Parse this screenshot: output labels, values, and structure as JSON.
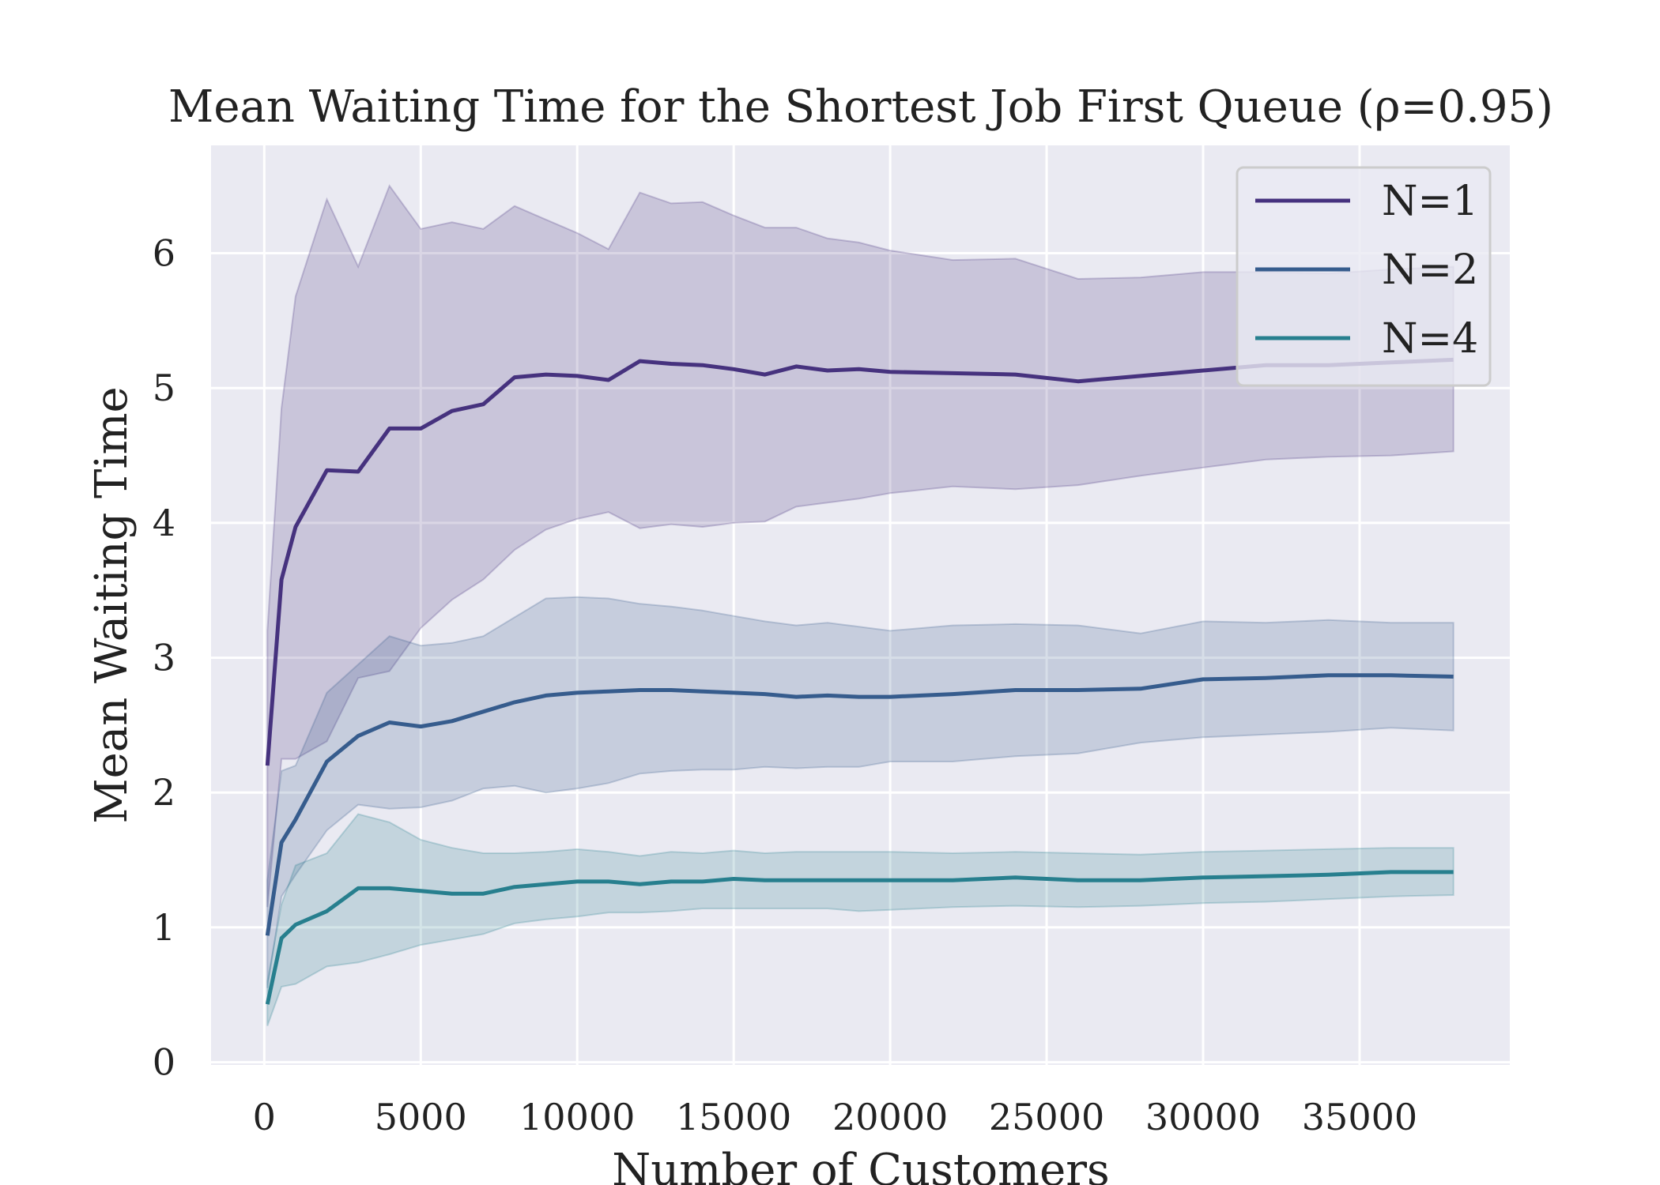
{
  "chart_data": {
    "type": "line",
    "title": "Mean Waiting Time for the Shortest Job First Queue (ρ=0.95)",
    "xlabel": "Number of Customers",
    "ylabel": "Mean Waiting Time",
    "xlim": [
      -1700,
      39800
    ],
    "ylim": [
      -0.02,
      6.8
    ],
    "xticks": [
      0,
      5000,
      10000,
      15000,
      20000,
      25000,
      30000,
      35000
    ],
    "xtick_labels": [
      "0",
      "5000",
      "10000",
      "15000",
      "20000",
      "25000",
      "30000",
      "35000"
    ],
    "yticks": [
      0,
      1,
      2,
      3,
      4,
      5,
      6
    ],
    "ytick_labels": [
      "0",
      "1",
      "2",
      "3",
      "4",
      "5",
      "6"
    ],
    "grid": true,
    "legend_position": "top-right",
    "background": "#eaeaf2",
    "series": [
      {
        "name": "N=1",
        "color": "#46327e",
        "band_color": "#46327e",
        "x": [
          100,
          550,
          1000,
          2000,
          3000,
          4000,
          5000,
          6000,
          7000,
          8000,
          9000,
          10000,
          11000,
          12000,
          13000,
          14000,
          15000,
          16000,
          17000,
          18000,
          19000,
          20000,
          22000,
          24000,
          26000,
          28000,
          30000,
          32000,
          34000,
          36000,
          38000
        ],
        "y": [
          2.2,
          3.58,
          3.97,
          4.39,
          4.38,
          4.7,
          4.7,
          4.83,
          4.88,
          5.08,
          5.1,
          5.09,
          5.06,
          5.2,
          5.18,
          5.17,
          5.14,
          5.1,
          5.16,
          5.13,
          5.14,
          5.12,
          5.11,
          5.1,
          5.05,
          5.09,
          5.13,
          5.17,
          5.17,
          5.19,
          5.21
        ],
        "lower": [
          1.15,
          2.25,
          2.25,
          2.38,
          2.85,
          2.9,
          3.22,
          3.43,
          3.58,
          3.8,
          3.95,
          4.03,
          4.08,
          3.96,
          3.99,
          3.97,
          4.0,
          4.01,
          4.12,
          4.15,
          4.18,
          4.22,
          4.27,
          4.25,
          4.28,
          4.35,
          4.41,
          4.47,
          4.49,
          4.5,
          4.53
        ],
        "upper": [
          3.2,
          4.85,
          5.68,
          6.4,
          5.9,
          6.5,
          6.18,
          6.23,
          6.18,
          6.35,
          6.25,
          6.15,
          6.03,
          6.45,
          6.37,
          6.38,
          6.28,
          6.19,
          6.19,
          6.11,
          6.08,
          6.02,
          5.95,
          5.96,
          5.81,
          5.82,
          5.86,
          5.86,
          5.85,
          5.88,
          5.9
        ]
      },
      {
        "name": "N=2",
        "color": "#365c8d",
        "band_color": "#365c8d",
        "x": [
          100,
          550,
          1000,
          2000,
          3000,
          4000,
          5000,
          6000,
          7000,
          8000,
          9000,
          10000,
          11000,
          12000,
          13000,
          14000,
          15000,
          16000,
          17000,
          18000,
          19000,
          20000,
          22000,
          24000,
          26000,
          28000,
          30000,
          32000,
          34000,
          36000,
          38000
        ],
        "y": [
          0.94,
          1.63,
          1.8,
          2.23,
          2.42,
          2.52,
          2.49,
          2.53,
          2.6,
          2.67,
          2.72,
          2.74,
          2.75,
          2.76,
          2.76,
          2.75,
          2.74,
          2.73,
          2.71,
          2.72,
          2.71,
          2.71,
          2.73,
          2.76,
          2.76,
          2.77,
          2.84,
          2.85,
          2.87,
          2.87,
          2.86
        ],
        "lower": [
          0.55,
          1.23,
          1.39,
          1.72,
          1.91,
          1.88,
          1.89,
          1.94,
          2.03,
          2.05,
          2.0,
          2.03,
          2.07,
          2.14,
          2.16,
          2.17,
          2.17,
          2.19,
          2.18,
          2.19,
          2.19,
          2.23,
          2.23,
          2.27,
          2.29,
          2.37,
          2.41,
          2.43,
          2.45,
          2.48,
          2.46
        ],
        "upper": [
          1.35,
          2.16,
          2.2,
          2.74,
          2.95,
          3.16,
          3.09,
          3.11,
          3.16,
          3.3,
          3.44,
          3.45,
          3.44,
          3.4,
          3.38,
          3.35,
          3.31,
          3.27,
          3.24,
          3.26,
          3.23,
          3.2,
          3.24,
          3.25,
          3.24,
          3.18,
          3.27,
          3.26,
          3.28,
          3.26,
          3.26
        ]
      },
      {
        "name": "N=4",
        "color": "#277f8e",
        "band_color": "#277f8e",
        "x": [
          100,
          550,
          1000,
          2000,
          3000,
          4000,
          5000,
          6000,
          7000,
          8000,
          9000,
          10000,
          11000,
          12000,
          13000,
          14000,
          15000,
          16000,
          17000,
          18000,
          19000,
          20000,
          22000,
          24000,
          26000,
          28000,
          30000,
          32000,
          34000,
          36000,
          38000
        ],
        "y": [
          0.43,
          0.92,
          1.02,
          1.12,
          1.29,
          1.29,
          1.27,
          1.25,
          1.25,
          1.3,
          1.32,
          1.34,
          1.34,
          1.32,
          1.34,
          1.34,
          1.36,
          1.35,
          1.35,
          1.35,
          1.35,
          1.35,
          1.35,
          1.37,
          1.35,
          1.35,
          1.37,
          1.38,
          1.39,
          1.41,
          1.41
        ],
        "lower": [
          0.27,
          0.56,
          0.58,
          0.71,
          0.74,
          0.8,
          0.87,
          0.91,
          0.95,
          1.03,
          1.06,
          1.08,
          1.11,
          1.11,
          1.12,
          1.14,
          1.14,
          1.14,
          1.14,
          1.14,
          1.12,
          1.13,
          1.15,
          1.16,
          1.15,
          1.16,
          1.18,
          1.19,
          1.21,
          1.23,
          1.24
        ],
        "upper": [
          0.6,
          1.17,
          1.46,
          1.55,
          1.84,
          1.78,
          1.65,
          1.59,
          1.55,
          1.55,
          1.56,
          1.58,
          1.56,
          1.53,
          1.56,
          1.55,
          1.57,
          1.55,
          1.56,
          1.56,
          1.56,
          1.56,
          1.55,
          1.56,
          1.55,
          1.54,
          1.56,
          1.57,
          1.58,
          1.59,
          1.59
        ]
      }
    ]
  }
}
